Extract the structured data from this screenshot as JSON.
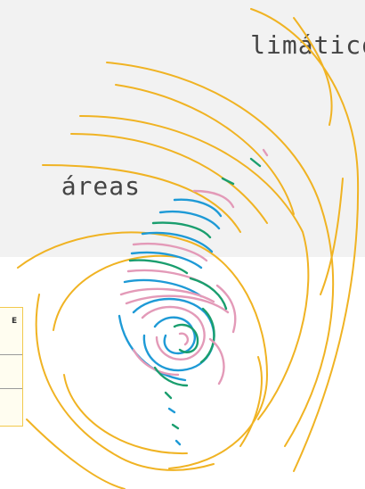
{
  "page": {
    "heading_1": "limático",
    "heading_2": "áreas",
    "panel_mark": "E"
  },
  "colors": {
    "background_top": "#f2f2f2",
    "background_bottom": "#ffffff",
    "swirl_gold": "#f0b323",
    "swirl_blue": "#1e9ad6",
    "swirl_pink": "#e39ab8",
    "swirl_green": "#1a9e6e",
    "panel_border": "#f2c94c"
  },
  "icons": [
    "cyclone-swirl-illustration"
  ]
}
